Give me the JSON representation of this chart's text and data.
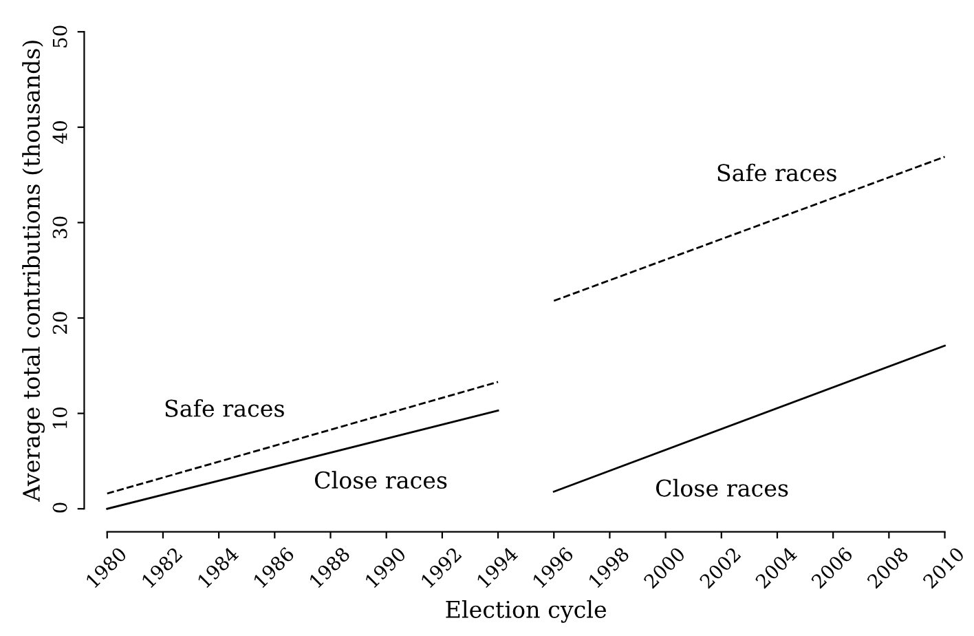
{
  "chart_data": {
    "type": "line",
    "xlabel": "Election cycle",
    "ylabel": "Average total contributions (thousands)",
    "series": [
      {
        "x": [
          1980,
          1994
        ],
        "values": [
          1.6,
          13.3
        ],
        "color": "#000000",
        "line_style": "dashed"
      },
      {
        "x": [
          1980,
          1994
        ],
        "values": [
          0,
          10.3
        ],
        "color": "#000000",
        "line_style": "solid"
      },
      {
        "x": [
          1996,
          2010
        ],
        "values": [
          21.8,
          36.9
        ],
        "color": "#000000",
        "line_style": "dashed"
      },
      {
        "x": [
          1996,
          2010
        ],
        "values": [
          1.8,
          17.1
        ],
        "color": "#000000",
        "line_style": "solid"
      }
    ],
    "xlim": [
      1980,
      2010
    ],
    "ylim": [
      0,
      50
    ],
    "xticks": [
      1980,
      1982,
      1984,
      1986,
      1988,
      1990,
      1992,
      1994,
      1996,
      1998,
      2000,
      2002,
      2004,
      2006,
      2008,
      2010
    ],
    "yticks": [
      0,
      10,
      20,
      30,
      40,
      50
    ],
    "grid": false,
    "marker": "none",
    "annotations": [
      "Safe races",
      "Close races",
      "Safe races",
      "Close races"
    ]
  }
}
